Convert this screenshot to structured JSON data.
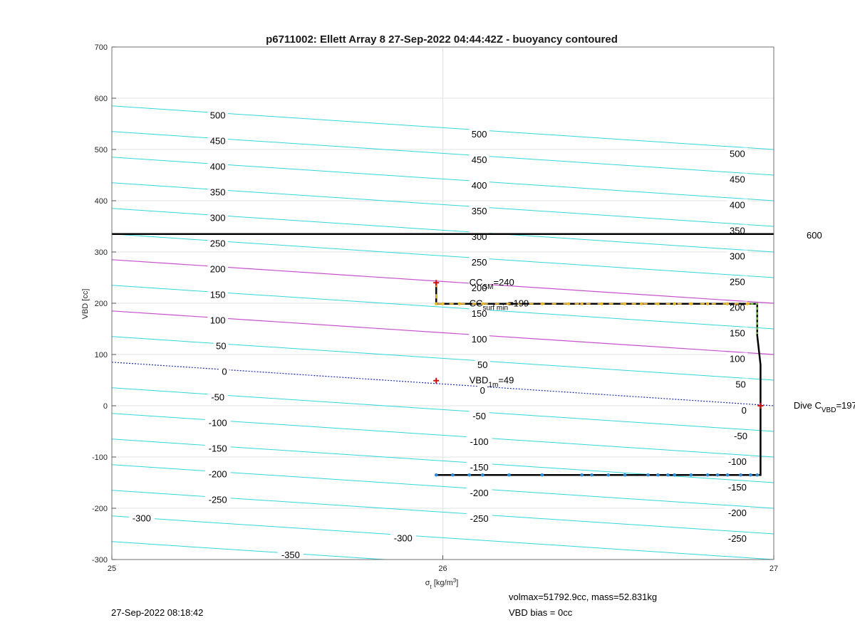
{
  "chart_data": {
    "type": "line",
    "title": "p6711002: Ellett Array 8 27-Sep-2022 04:44:42Z - buoyancy contoured",
    "xlabel": "σ_t [kg/m^3]",
    "ylabel": "VBD [cc]",
    "xlim": [
      25,
      27
    ],
    "ylim": [
      -300,
      700
    ],
    "xticks": [
      25,
      26,
      27
    ],
    "yticks": [
      -300,
      -200,
      -100,
      0,
      100,
      200,
      300,
      400,
      500,
      600,
      700
    ],
    "grid": true,
    "contours": {
      "levels": [
        -350,
        -300,
        -250,
        -200,
        -150,
        -100,
        -50,
        0,
        50,
        100,
        150,
        200,
        250,
        300,
        350,
        400,
        450,
        500
      ],
      "vbd_at_x25": [
        -265,
        -215,
        -165,
        -115,
        -65,
        -15,
        35,
        85,
        135,
        185,
        235,
        285,
        335,
        385,
        435,
        485,
        535,
        585
      ],
      "vbd_at_x27": [
        -350,
        -300,
        -250,
        -200,
        -150,
        -100,
        -50,
        0,
        50,
        100,
        150,
        200,
        250,
        300,
        350,
        400,
        450,
        500
      ],
      "colors": {
        "default": "#33d6dc",
        "highlight": "#c94fd0",
        "zero": "#1f2fa8"
      },
      "highlight_levels": [
        100,
        200
      ],
      "zero_level": 0,
      "labels": [
        {
          "text": "500",
          "x": 25.32,
          "y": 566
        },
        {
          "text": "450",
          "x": 25.32,
          "y": 516
        },
        {
          "text": "400",
          "x": 25.32,
          "y": 466
        },
        {
          "text": "350",
          "x": 25.32,
          "y": 416
        },
        {
          "text": "300",
          "x": 25.32,
          "y": 366
        },
        {
          "text": "250",
          "x": 25.32,
          "y": 316
        },
        {
          "text": "200",
          "x": 25.32,
          "y": 266
        },
        {
          "text": "150",
          "x": 25.32,
          "y": 216
        },
        {
          "text": "100",
          "x": 25.32,
          "y": 166
        },
        {
          "text": "50",
          "x": 25.33,
          "y": 116
        },
        {
          "text": "0",
          "x": 25.34,
          "y": 66
        },
        {
          "text": "-50",
          "x": 25.32,
          "y": 16
        },
        {
          "text": "-100",
          "x": 25.32,
          "y": -34
        },
        {
          "text": "-150",
          "x": 25.32,
          "y": -84
        },
        {
          "text": "-200",
          "x": 25.32,
          "y": -134
        },
        {
          "text": "-250",
          "x": 25.32,
          "y": -184
        },
        {
          "text": "-300",
          "x": 25.09,
          "y": -220
        },
        {
          "text": "-350",
          "x": 25.54,
          "y": -292
        },
        {
          "text": "500",
          "x": 26.11,
          "y": 529
        },
        {
          "text": "450",
          "x": 26.11,
          "y": 479
        },
        {
          "text": "400",
          "x": 26.11,
          "y": 429
        },
        {
          "text": "350",
          "x": 26.11,
          "y": 379
        },
        {
          "text": "300",
          "x": 26.11,
          "y": 329
        },
        {
          "text": "250",
          "x": 26.11,
          "y": 279
        },
        {
          "text": "200",
          "x": 26.11,
          "y": 229
        },
        {
          "text": "150",
          "x": 26.11,
          "y": 179
        },
        {
          "text": "100",
          "x": 26.11,
          "y": 129
        },
        {
          "text": "50",
          "x": 26.12,
          "y": 79
        },
        {
          "text": "0",
          "x": 26.12,
          "y": 29
        },
        {
          "text": "-50",
          "x": 26.11,
          "y": -21
        },
        {
          "text": "-100",
          "x": 26.11,
          "y": -71
        },
        {
          "text": "-150",
          "x": 26.11,
          "y": -121
        },
        {
          "text": "-200",
          "x": 26.11,
          "y": -171
        },
        {
          "text": "-250",
          "x": 26.11,
          "y": -221
        },
        {
          "text": "-300",
          "x": 25.88,
          "y": -259
        },
        {
          "text": "500",
          "x": 26.89,
          "y": 491
        },
        {
          "text": "450",
          "x": 26.89,
          "y": 441
        },
        {
          "text": "400",
          "x": 26.89,
          "y": 391
        },
        {
          "text": "350",
          "x": 26.89,
          "y": 341
        },
        {
          "text": "300",
          "x": 26.89,
          "y": 291
        },
        {
          "text": "250",
          "x": 26.89,
          "y": 241
        },
        {
          "text": "200",
          "x": 26.89,
          "y": 191
        },
        {
          "text": "150",
          "x": 26.89,
          "y": 141
        },
        {
          "text": "100",
          "x": 26.89,
          "y": 91
        },
        {
          "text": "50",
          "x": 26.9,
          "y": 41
        },
        {
          "text": "0",
          "x": 26.91,
          "y": -10
        },
        {
          "text": "-50",
          "x": 26.9,
          "y": -60
        },
        {
          "text": "-100",
          "x": 26.89,
          "y": -110
        },
        {
          "text": "-150",
          "x": 26.89,
          "y": -160
        },
        {
          "text": "-200",
          "x": 26.89,
          "y": -210
        },
        {
          "text": "-250",
          "x": 26.89,
          "y": -260
        }
      ]
    },
    "reference_line": {
      "y": 335,
      "label": "600",
      "color": "#000000"
    },
    "dive_path": [
      [
        25.98,
        240
      ],
      [
        25.98,
        199
      ],
      [
        26.95,
        199
      ],
      [
        26.95,
        137
      ],
      [
        26.96,
        80
      ],
      [
        26.96,
        -135
      ],
      [
        25.98,
        -135
      ]
    ],
    "surface_dots": {
      "color": "#e9b92c",
      "x": [
        25.98,
        26.0,
        26.05,
        26.12,
        26.2,
        26.3,
        26.38,
        26.42,
        26.48,
        26.55,
        26.6,
        26.65,
        26.7,
        26.75,
        26.8,
        26.86,
        26.92
      ]
    },
    "green_segment": {
      "color": "#6fcf3f",
      "points": [
        [
          26.93,
          199
        ],
        [
          26.95,
          199
        ],
        [
          26.95,
          140
        ]
      ]
    },
    "deep_dots": {
      "color": "#2f8fd8",
      "x": [
        25.98,
        26.03,
        26.08,
        26.12,
        26.2,
        26.3,
        26.42,
        26.45,
        26.5,
        26.55,
        26.62,
        26.65,
        26.68,
        26.7,
        26.75,
        26.8,
        26.83,
        26.86,
        26.9,
        26.93,
        26.95
      ]
    },
    "markers": [
      {
        "x": 25.98,
        "y": 240,
        "color": "#cc1010"
      },
      {
        "x": 25.98,
        "y": 49,
        "color": "#cc1010"
      },
      {
        "x": 26.96,
        "y": 0,
        "color": "#cc1010"
      }
    ],
    "annotations": {
      "cc_sm": {
        "pre": "CC",
        "sub": "SM",
        "post": "=240",
        "x": 26.08,
        "y": 240
      },
      "cc_surf": {
        "pre": "CC",
        "sub": "surf min",
        "post": "=199",
        "x": 26.08,
        "y": 199
      },
      "vbd_1m": {
        "pre": "VBD",
        "sub": "1m",
        "post": "=49",
        "x": 26.08,
        "y": 49
      },
      "dive_c": {
        "pre": "Dive C",
        "sub": "VBD",
        "post": "=197",
        "x": 27.06,
        "y": 0
      }
    }
  },
  "footer": {
    "timestamp": "27-Sep-2022 08:18:42",
    "volmax": "volmax=51792.9cc, mass=52.831kg",
    "vbd_bias": "VBD bias = 0cc"
  }
}
